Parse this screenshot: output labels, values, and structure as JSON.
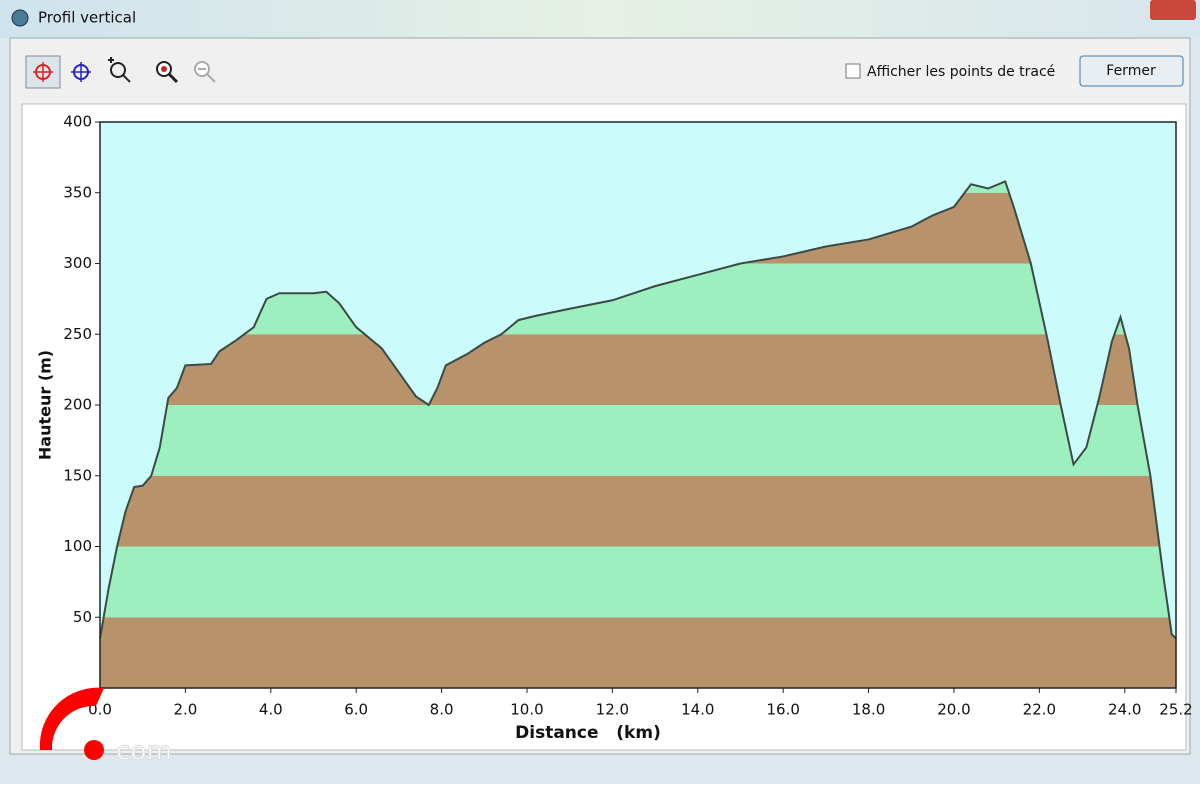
{
  "window": {
    "title": "Profil vertical",
    "checkbox_label": "Afficher les points de tracé",
    "button": "Fermer",
    "watermark": ".com"
  },
  "chart_data": {
    "type": "area",
    "x_label": "Distance   (km)",
    "y_label": "Hauteur (m)",
    "xlim": [
      0,
      25.2
    ],
    "ylim": [
      0,
      400
    ],
    "xticks": [
      {
        "value": 0,
        "label": "0.0"
      },
      {
        "value": 2,
        "label": "2.0"
      },
      {
        "value": 4,
        "label": "4.0"
      },
      {
        "value": 6,
        "label": "6.0"
      },
      {
        "value": 8,
        "label": "8.0"
      },
      {
        "value": 10,
        "label": "10.0"
      },
      {
        "value": 12,
        "label": "12.0"
      },
      {
        "value": 14,
        "label": "14.0"
      },
      {
        "value": 16,
        "label": "16.0"
      },
      {
        "value": 18,
        "label": "18.0"
      },
      {
        "value": 20,
        "label": "20.0"
      },
      {
        "value": 22,
        "label": "22.0"
      },
      {
        "value": 24,
        "label": "24.0"
      },
      25.2
    ],
    "yticks": [
      50,
      100,
      150,
      200,
      250,
      300,
      350,
      400
    ],
    "background": "#ccfbfb",
    "band_colors": [
      "#b8926a",
      "#9eefc0"
    ],
    "line_color": "#3a4a44",
    "x": [
      0,
      0.2,
      0.4,
      0.6,
      0.8,
      1.0,
      1.2,
      1.4,
      1.6,
      1.8,
      2.0,
      2.6,
      2.8,
      3.2,
      3.6,
      3.9,
      4.2,
      5.0,
      5.3,
      5.6,
      6.0,
      6.6,
      7.0,
      7.4,
      7.7,
      7.9,
      8.1,
      8.6,
      9.0,
      9.4,
      9.8,
      10.2,
      11.0,
      12.0,
      13.0,
      14.0,
      15.0,
      16.0,
      17.0,
      18.0,
      19.0,
      19.5,
      20.0,
      20.4,
      20.8,
      21.2,
      21.4,
      21.8,
      22.2,
      22.5,
      22.8,
      23.1,
      23.4,
      23.7,
      23.9,
      24.1,
      24.3,
      24.6,
      24.9,
      25.1,
      25.2
    ],
    "values": [
      35,
      70,
      100,
      125,
      142,
      143,
      150,
      170,
      205,
      212,
      228,
      229,
      238,
      246,
      255,
      275,
      279,
      279,
      280,
      272,
      255,
      240,
      223,
      206,
      200,
      212,
      228,
      236,
      244,
      250,
      260,
      263,
      268,
      274,
      284,
      292,
      300,
      305,
      312,
      317,
      326,
      334,
      340,
      356,
      353,
      358,
      340,
      300,
      245,
      200,
      158,
      170,
      205,
      245,
      262,
      240,
      200,
      150,
      80,
      38,
      35
    ]
  }
}
